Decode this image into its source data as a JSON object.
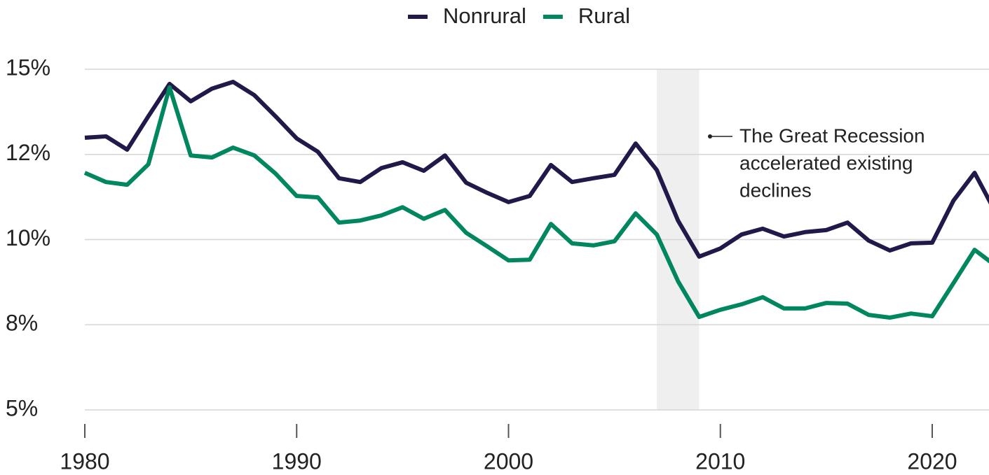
{
  "chart_data": {
    "type": "line",
    "x": [
      1980,
      1981,
      1982,
      1983,
      1984,
      1985,
      1986,
      1987,
      1988,
      1989,
      1990,
      1991,
      1992,
      1993,
      1994,
      1995,
      1996,
      1997,
      1998,
      1999,
      2000,
      2001,
      2002,
      2003,
      2004,
      2005,
      2006,
      2007,
      2008,
      2009,
      2010,
      2011,
      2012,
      2013,
      2014,
      2015,
      2016,
      2017,
      2018,
      2019,
      2020,
      2021,
      2022,
      2023
    ],
    "series": [
      {
        "name": "Nonrural",
        "color": "#22184a",
        "values": [
          12.99,
          13.03,
          12.64,
          13.62,
          14.57,
          14.06,
          14.43,
          14.63,
          14.24,
          13.62,
          12.97,
          12.58,
          11.8,
          11.69,
          12.1,
          12.27,
          12.02,
          12.47,
          11.67,
          11.37,
          11.1,
          11.28,
          12.19,
          11.69,
          11.8,
          11.9,
          12.82,
          12.04,
          10.56,
          9.5,
          9.74,
          10.15,
          10.32,
          10.09,
          10.22,
          10.28,
          10.5,
          9.97,
          9.68,
          9.89,
          9.91,
          11.14,
          11.96,
          10.79
        ]
      },
      {
        "name": "Rural",
        "color": "#00875f",
        "values": [
          11.96,
          11.69,
          11.61,
          12.21,
          14.47,
          12.47,
          12.41,
          12.7,
          12.47,
          11.94,
          11.28,
          11.24,
          10.5,
          10.56,
          10.71,
          10.95,
          10.61,
          10.87,
          10.2,
          9.8,
          9.39,
          9.41,
          10.46,
          9.89,
          9.83,
          9.95,
          10.77,
          10.15,
          8.78,
          7.73,
          7.94,
          8.1,
          8.31,
          7.98,
          7.98,
          8.14,
          8.12,
          7.79,
          7.71,
          7.83,
          7.75,
          8.72,
          9.7,
          9.23
        ]
      }
    ],
    "xlim": [
      1980,
      2022.68
    ],
    "xticks": [
      1980,
      1990,
      2000,
      2010,
      2020
    ],
    "ylim": [
      5,
      15
    ],
    "yticks": [
      {
        "value": 5,
        "label": "5%"
      },
      {
        "value": 7.5,
        "label": "8%"
      },
      {
        "value": 10,
        "label": "10%"
      },
      {
        "value": 12.5,
        "label": "12%"
      },
      {
        "value": 15,
        "label": "15%"
      }
    ],
    "grid": true,
    "legend": "top",
    "shaded": {
      "start": 2007,
      "end": 2009
    },
    "annotation": [
      "The Great Recession",
      "accelerated existing",
      "declines"
    ]
  }
}
